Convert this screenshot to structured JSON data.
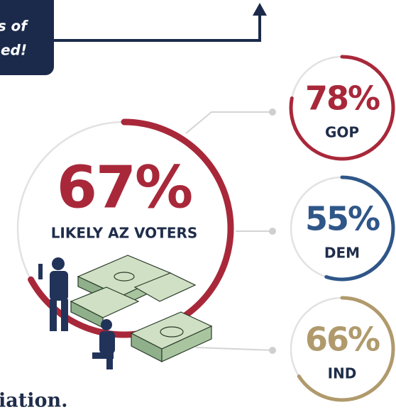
{
  "callout": {
    "lines": [
      "s of",
      "ed!"
    ]
  },
  "footer_text": "iation.",
  "chart_data": [
    {
      "type": "ring",
      "value": 67,
      "value_label": "67%",
      "label": "LIKELY AZ VOTERS",
      "color": "#a8283a",
      "lim": [
        0,
        100
      ]
    },
    {
      "type": "ring",
      "value": 78,
      "value_label": "78%",
      "label": "GOP",
      "color": "#a8283a",
      "lim": [
        0,
        100
      ]
    },
    {
      "type": "ring",
      "value": 55,
      "value_label": "55%",
      "label": "DEM",
      "color": "#2f5688",
      "lim": [
        0,
        100
      ]
    },
    {
      "type": "ring",
      "value": 66,
      "value_label": "66%",
      "label": "IND",
      "color": "#b09a6c",
      "lim": [
        0,
        100
      ]
    }
  ]
}
